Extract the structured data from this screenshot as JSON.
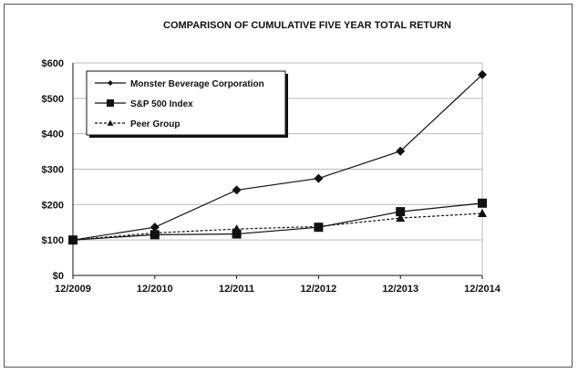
{
  "chart_data": {
    "type": "line",
    "title": "COMPARISON OF CUMULATIVE FIVE YEAR TOTAL RETURN",
    "xlabel": "",
    "ylabel": "",
    "categories": [
      "12/2009",
      "12/2010",
      "12/2011",
      "12/2012",
      "12/2013",
      "12/2014"
    ],
    "ylim": [
      0,
      600
    ],
    "yticks": [
      0,
      100,
      200,
      300,
      400,
      500,
      600
    ],
    "ytick_labels": [
      "$0",
      "$100",
      "$200",
      "$300",
      "$400",
      "$500",
      "$600"
    ],
    "grid": true,
    "legend_position": "top-left",
    "series": [
      {
        "name": "Monster Beverage Corporation",
        "marker": "diamond",
        "dash": false,
        "values": [
          100,
          136,
          241,
          274,
          351,
          567
        ]
      },
      {
        "name": "S&P 500 Index",
        "marker": "square",
        "dash": false,
        "values": [
          100,
          115,
          117,
          136,
          180,
          204
        ]
      },
      {
        "name": "Peer Group",
        "marker": "triangle",
        "dash": true,
        "values": [
          100,
          120,
          131,
          138,
          162,
          175
        ]
      }
    ]
  }
}
